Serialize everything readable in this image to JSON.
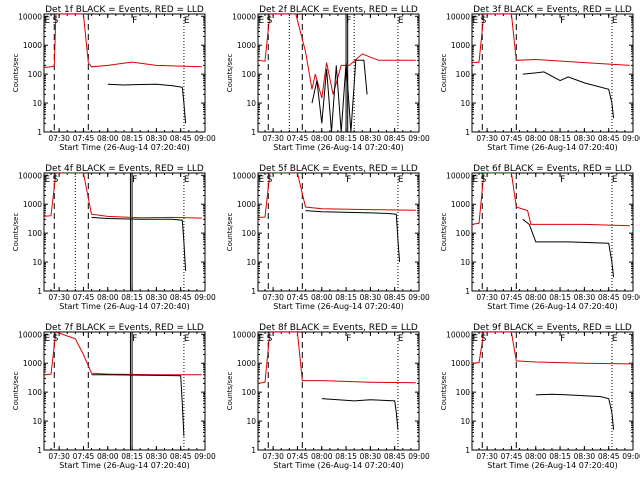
{
  "figure": {
    "x_tick_labels": [
      "07:30",
      "07:45",
      "08:00",
      "08:15",
      "08:30",
      "08:45",
      "09:00"
    ],
    "y_tick_labels": [
      "1",
      "10",
      "100",
      "1000",
      "10000"
    ],
    "xlabel": "Start Time (26-Aug-14 07:20:40)",
    "ylabel": "Counts/sec",
    "colors": {
      "events": "#000000",
      "lld": "#dd0000",
      "axes": "#000000"
    }
  },
  "chart_data": [
    {
      "type": "line",
      "title": "Det 1f BLACK = Events, RED = LLD",
      "xlabel": "Start Time (26-Aug-14 07:20:40)",
      "ylabel": "Counts/sec",
      "xlim": [
        "07:20:40",
        "09:00"
      ],
      "ylim": [
        1,
        12000
      ],
      "yscale": "log",
      "markers": [
        {
          "label": "E",
          "x": "07:21"
        },
        {
          "label": "S",
          "x": "07:26"
        },
        {
          "label": "F",
          "x": "08:15"
        },
        {
          "label": "E",
          "x": "08:47"
        }
      ],
      "dashed_lines": [
        "07:27",
        "07:48"
      ],
      "solid_lines": [],
      "dotted_lines": [
        "08:47"
      ],
      "series": [
        {
          "color": "#dd0000",
          "x": [
            "07:20:40",
            "07:25",
            "07:27",
            "07:28",
            "07:45",
            "07:48",
            "07:50",
            "08:00",
            "08:15",
            "08:30",
            "08:45",
            "08:58"
          ],
          "y": [
            170,
            180,
            190,
            12000,
            12000,
            250,
            180,
            200,
            260,
            200,
            190,
            180
          ]
        },
        {
          "color": "#000000",
          "x": [
            "08:00",
            "08:10",
            "08:20",
            "08:30",
            "08:40",
            "08:46",
            "08:47",
            "08:48"
          ],
          "y": [
            45,
            42,
            44,
            45,
            40,
            35,
            10,
            2
          ]
        }
      ]
    },
    {
      "type": "line",
      "title": "Det 2f BLACK = Events, RED = LLD",
      "xlabel": "Start Time (26-Aug-14 07:20:40)",
      "ylabel": "Counts/sec",
      "xlim": [
        "07:20:40",
        "09:00"
      ],
      "ylim": [
        1,
        12000
      ],
      "yscale": "log",
      "markers": [
        {
          "label": "E",
          "x": "07:21"
        },
        {
          "label": "S",
          "x": "07:26"
        },
        {
          "label": "F",
          "x": "08:15"
        },
        {
          "label": "E",
          "x": "08:47"
        }
      ],
      "dashed_lines": [
        "07:27",
        "07:48"
      ],
      "solid_lines": [
        "08:15",
        "08:16"
      ],
      "dotted_lines": [
        "07:40",
        "08:20",
        "08:47"
      ],
      "series": [
        {
          "color": "#dd0000",
          "x": [
            "07:20:40",
            "07:25",
            "07:28",
            "07:44",
            "07:50",
            "07:54",
            "07:56",
            "08:00",
            "08:03",
            "08:07",
            "08:12",
            "08:17",
            "08:25",
            "08:35",
            "08:58"
          ],
          "y": [
            300,
            280,
            12000,
            12000,
            600,
            30,
            100,
            15,
            250,
            20,
            200,
            200,
            500,
            300,
            300
          ]
        },
        {
          "color": "#000000",
          "x": [
            "07:54",
            "07:57",
            "08:00",
            "08:03",
            "08:06",
            "08:09",
            "08:12",
            "08:15",
            "08:18",
            "08:21",
            "08:26",
            "08:28"
          ],
          "y": [
            10,
            60,
            2,
            150,
            1,
            200,
            1,
            250,
            1,
            300,
            300,
            20
          ]
        }
      ]
    },
    {
      "type": "line",
      "title": "Det 3f BLACK = Events, RED = LLD",
      "xlabel": "Start Time (26-Aug-14 07:20:40)",
      "ylabel": "Counts/sec",
      "xlim": [
        "07:20:40",
        "09:00"
      ],
      "ylim": [
        1,
        12000
      ],
      "yscale": "log",
      "markers": [
        {
          "label": "E",
          "x": "07:21"
        },
        {
          "label": "S",
          "x": "07:26"
        },
        {
          "label": "F",
          "x": "08:15"
        },
        {
          "label": "E",
          "x": "08:47"
        }
      ],
      "dashed_lines": [
        "07:27",
        "07:48"
      ],
      "solid_lines": [],
      "dotted_lines": [
        "08:47"
      ],
      "series": [
        {
          "color": "#dd0000",
          "x": [
            "07:20:40",
            "07:25",
            "07:28",
            "07:45",
            "07:48",
            "08:00",
            "08:30",
            "08:58"
          ],
          "y": [
            250,
            260,
            12000,
            12000,
            300,
            320,
            250,
            200
          ]
        },
        {
          "color": "#000000",
          "x": [
            "07:52",
            "08:00",
            "08:05",
            "08:15",
            "08:20",
            "08:30",
            "08:45",
            "08:47",
            "08:48"
          ],
          "y": [
            100,
            110,
            120,
            60,
            80,
            50,
            30,
            10,
            3
          ]
        }
      ]
    },
    {
      "type": "line",
      "title": "Det 4f BLACK = Events, RED = LLD",
      "xlabel": "Start Time (26-Aug-14 07:20:40)",
      "ylabel": "Counts/sec",
      "xlim": [
        "07:20:40",
        "09:00"
      ],
      "ylim": [
        1,
        12000
      ],
      "yscale": "log",
      "markers": [
        {
          "label": "E",
          "x": "07:21"
        },
        {
          "label": "S",
          "x": "07:26"
        },
        {
          "label": "F",
          "x": "08:15"
        },
        {
          "label": "E",
          "x": "08:47"
        }
      ],
      "dashed_lines": [
        "07:27",
        "07:48"
      ],
      "solid_lines": [
        "08:14",
        "08:15"
      ],
      "dotted_lines": [
        "07:40",
        "08:47"
      ],
      "series": [
        {
          "color": "#dd0000",
          "x": [
            "07:20:40",
            "07:25",
            "07:28",
            "07:45",
            "07:50",
            "08:00",
            "08:20",
            "08:40",
            "08:58"
          ],
          "y": [
            380,
            400,
            12000,
            12000,
            450,
            380,
            340,
            350,
            330
          ]
        },
        {
          "color": "#000000",
          "x": [
            "07:50",
            "08:00",
            "08:20",
            "08:40",
            "08:46",
            "08:47",
            "08:48"
          ],
          "y": [
            350,
            320,
            300,
            300,
            280,
            50,
            5
          ]
        }
      ]
    },
    {
      "type": "line",
      "title": "Det 5f BLACK = Events, RED = LLD",
      "xlabel": "Start Time (26-Aug-14 07:20:40)",
      "ylabel": "Counts/sec",
      "xlim": [
        "07:20:40",
        "09:00"
      ],
      "ylim": [
        1,
        12000
      ],
      "yscale": "log",
      "markers": [
        {
          "label": "E",
          "x": "07:21"
        },
        {
          "label": "S",
          "x": "07:26"
        },
        {
          "label": "F",
          "x": "08:15"
        },
        {
          "label": "E",
          "x": "08:47"
        }
      ],
      "dashed_lines": [
        "07:27",
        "07:48"
      ],
      "solid_lines": [],
      "dotted_lines": [
        "08:47"
      ],
      "series": [
        {
          "color": "#dd0000",
          "x": [
            "07:20:40",
            "07:25",
            "07:28",
            "07:45",
            "07:50",
            "08:00",
            "08:30",
            "08:58"
          ],
          "y": [
            350,
            360,
            12000,
            12000,
            800,
            700,
            650,
            620
          ]
        },
        {
          "color": "#000000",
          "x": [
            "07:50",
            "08:00",
            "08:30",
            "08:40",
            "08:46",
            "08:47",
            "08:48"
          ],
          "y": [
            600,
            550,
            500,
            480,
            450,
            60,
            10
          ]
        }
      ]
    },
    {
      "type": "line",
      "title": "Det 6f BLACK = Events, RED = LLD",
      "xlabel": "Start Time (26-Aug-14 07:20:40)",
      "ylabel": "Counts/sec",
      "xlim": [
        "07:20:40",
        "09:00"
      ],
      "ylim": [
        1,
        12000
      ],
      "yscale": "log",
      "markers": [
        {
          "label": "E",
          "x": "07:21"
        },
        {
          "label": "S",
          "x": "07:26"
        },
        {
          "label": "F",
          "x": "08:15"
        },
        {
          "label": "E",
          "x": "08:47"
        }
      ],
      "dashed_lines": [
        "07:27",
        "07:48"
      ],
      "solid_lines": [],
      "dotted_lines": [
        "08:47"
      ],
      "series": [
        {
          "color": "#dd0000",
          "x": [
            "07:20:40",
            "07:25",
            "07:28",
            "07:45",
            "07:48",
            "07:55",
            "07:57",
            "08:30",
            "08:58"
          ],
          "y": [
            200,
            220,
            12000,
            12000,
            800,
            600,
            200,
            200,
            180
          ]
        },
        {
          "color": "#000000",
          "x": [
            "07:52",
            "07:56",
            "08:00",
            "08:20",
            "08:45",
            "08:47",
            "08:48"
          ],
          "y": [
            300,
            200,
            50,
            50,
            45,
            10,
            3
          ]
        }
      ]
    },
    {
      "type": "line",
      "title": "Det 7f BLACK = Events, RED = LLD",
      "xlabel": "Start Time (26-Aug-14 07:20:40)",
      "ylabel": "Counts/sec",
      "xlim": [
        "07:20:40",
        "09:00"
      ],
      "ylim": [
        1,
        12000
      ],
      "yscale": "log",
      "markers": [
        {
          "label": "E",
          "x": "07:21"
        },
        {
          "label": "S",
          "x": "07:26"
        },
        {
          "label": "F",
          "x": "08:15"
        },
        {
          "label": "E",
          "x": "08:47"
        }
      ],
      "dashed_lines": [
        "07:27",
        "07:48"
      ],
      "solid_lines": [
        "08:14",
        "08:15"
      ],
      "dotted_lines": [
        "08:47"
      ],
      "series": [
        {
          "color": "#dd0000",
          "x": [
            "07:20:40",
            "07:25",
            "07:28",
            "07:40",
            "07:45",
            "07:50",
            "08:00",
            "08:30",
            "08:58"
          ],
          "y": [
            400,
            420,
            12000,
            7000,
            2000,
            450,
            420,
            400,
            400
          ]
        },
        {
          "color": "#000000",
          "x": [
            "07:50",
            "08:00",
            "08:30",
            "08:45",
            "08:46",
            "08:47"
          ],
          "y": [
            400,
            400,
            380,
            370,
            40,
            3
          ]
        }
      ]
    },
    {
      "type": "line",
      "title": "Det 8f BLACK = Events, RED = LLD",
      "xlabel": "Start Time (26-Aug-14 07:20:40)",
      "ylabel": "Counts/sec",
      "xlim": [
        "07:20:40",
        "09:00"
      ],
      "ylim": [
        1,
        12000
      ],
      "yscale": "log",
      "markers": [
        {
          "label": "E",
          "x": "07:21"
        },
        {
          "label": "S",
          "x": "07:26"
        },
        {
          "label": "F",
          "x": "08:15"
        },
        {
          "label": "E",
          "x": "08:47"
        }
      ],
      "dashed_lines": [
        "07:27",
        "07:48"
      ],
      "solid_lines": [],
      "dotted_lines": [
        "08:47"
      ],
      "series": [
        {
          "color": "#dd0000",
          "x": [
            "07:20:40",
            "07:25",
            "07:28",
            "07:45",
            "07:48",
            "08:00",
            "08:30",
            "08:58"
          ],
          "y": [
            200,
            220,
            12000,
            12000,
            250,
            250,
            220,
            210
          ]
        },
        {
          "color": "#000000",
          "x": [
            "08:00",
            "08:10",
            "08:20",
            "08:30",
            "08:45",
            "08:46",
            "08:47"
          ],
          "y": [
            60,
            55,
            50,
            55,
            50,
            20,
            5
          ]
        }
      ]
    },
    {
      "type": "line",
      "title": "Det 9f BLACK = Events, RED = LLD",
      "xlabel": "Start Time (26-Aug-14 07:20:40)",
      "ylabel": "Counts/sec",
      "xlim": [
        "07:20:40",
        "09:00"
      ],
      "ylim": [
        1,
        12000
      ],
      "yscale": "log",
      "markers": [
        {
          "label": "E",
          "x": "07:21"
        },
        {
          "label": "S",
          "x": "07:26"
        },
        {
          "label": "F",
          "x": "08:15"
        },
        {
          "label": "E",
          "x": "08:47"
        }
      ],
      "dashed_lines": [
        "07:27",
        "07:48"
      ],
      "solid_lines": [],
      "dotted_lines": [
        "08:47"
      ],
      "series": [
        {
          "color": "#dd0000",
          "x": [
            "07:20:40",
            "07:25",
            "07:28",
            "07:45",
            "07:48",
            "08:00",
            "08:30",
            "08:58"
          ],
          "y": [
            1000,
            1050,
            12000,
            12000,
            1200,
            1100,
            1000,
            950
          ]
        },
        {
          "color": "#000000",
          "x": [
            "08:00",
            "08:10",
            "08:20",
            "08:30",
            "08:40",
            "08:45",
            "08:47",
            "08:48"
          ],
          "y": [
            80,
            85,
            80,
            75,
            70,
            60,
            20,
            5
          ]
        }
      ]
    }
  ]
}
